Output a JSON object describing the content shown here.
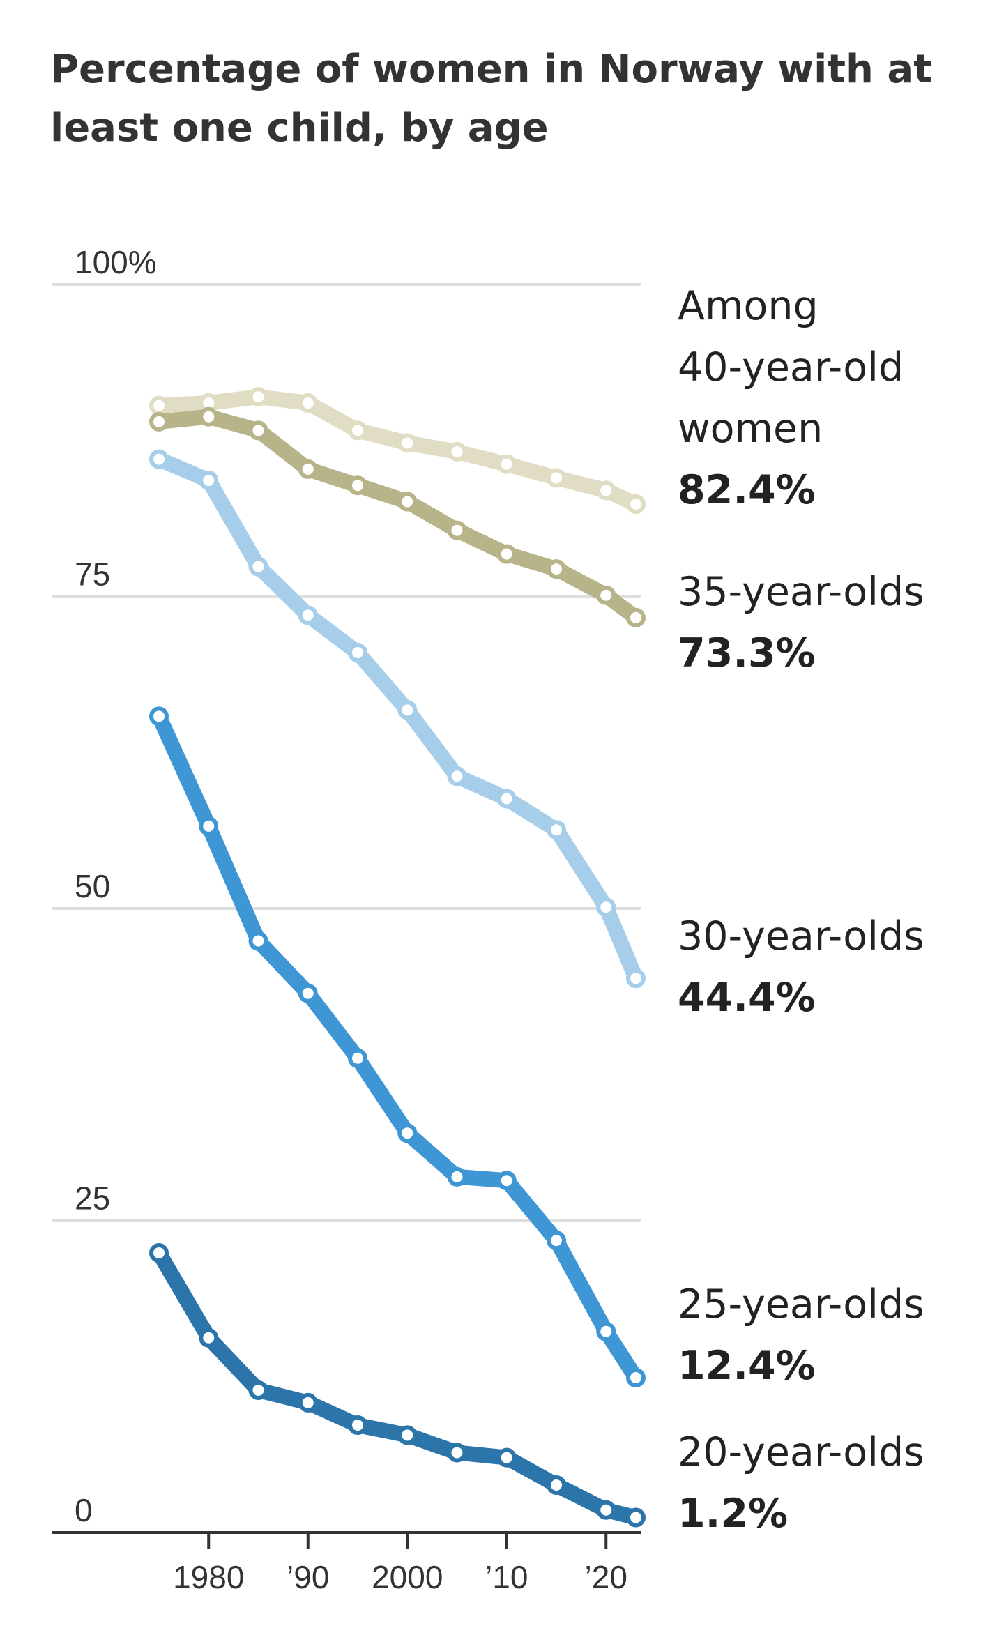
{
  "chart_data": {
    "type": "line",
    "title": "Percentage of women in Norway with at least one child, by age",
    "xlabel": "",
    "ylabel": "",
    "xlim": [
      1970,
      2024
    ],
    "ylim": [
      0,
      100
    ],
    "y_ticks": [
      {
        "value": 100,
        "label": "100%"
      },
      {
        "value": 75,
        "label": "75"
      },
      {
        "value": 50,
        "label": "50"
      },
      {
        "value": 25,
        "label": "25"
      },
      {
        "value": 0,
        "label": "0"
      }
    ],
    "x_ticks": [
      {
        "value": 1980,
        "label": "1980"
      },
      {
        "value": 1990,
        "label": "’90"
      },
      {
        "value": 2000,
        "label": "2000"
      },
      {
        "value": 2010,
        "label": "’10"
      },
      {
        "value": 2020,
        "label": "’20"
      }
    ],
    "grid": true,
    "x": [
      1975,
      1980,
      1985,
      1990,
      1995,
      2000,
      2005,
      2010,
      2015,
      2020,
      2023
    ],
    "series": [
      {
        "name": "Among 40-year-old women",
        "label_lines": [
          "Among",
          "40-year-old",
          "women"
        ],
        "value_label": "82.4%",
        "color": "#e1ddc4",
        "values": [
          90.3,
          90.5,
          91.0,
          90.5,
          88.3,
          87.3,
          86.6,
          85.6,
          84.5,
          83.5,
          82.4
        ]
      },
      {
        "name": "35-year-olds",
        "label_lines": [
          "35-year-olds"
        ],
        "value_label": "73.3%",
        "color": "#b8b489",
        "values": [
          89.0,
          89.4,
          88.3,
          85.2,
          83.9,
          82.6,
          80.3,
          78.4,
          77.2,
          75.1,
          73.3
        ]
      },
      {
        "name": "30-year-olds",
        "label_lines": [
          "30-year-olds"
        ],
        "value_label": "44.4%",
        "color": "#a6cdea",
        "values": [
          86.0,
          84.3,
          77.4,
          73.5,
          70.5,
          65.9,
          60.6,
          58.8,
          56.3,
          50.1,
          44.4
        ]
      },
      {
        "name": "25-year-olds",
        "label_lines": [
          "25-year-olds"
        ],
        "value_label": "12.4%",
        "color": "#3f96d4",
        "values": [
          65.4,
          56.6,
          47.4,
          43.2,
          38.0,
          32.0,
          28.5,
          28.2,
          23.4,
          16.1,
          12.4
        ]
      },
      {
        "name": "20-year-olds",
        "label_lines": [
          "20-year-olds"
        ],
        "value_label": "1.2%",
        "color": "#2c75ab",
        "values": [
          22.4,
          15.6,
          11.4,
          10.4,
          8.6,
          7.8,
          6.4,
          6.0,
          3.8,
          1.8,
          1.2
        ]
      }
    ]
  }
}
